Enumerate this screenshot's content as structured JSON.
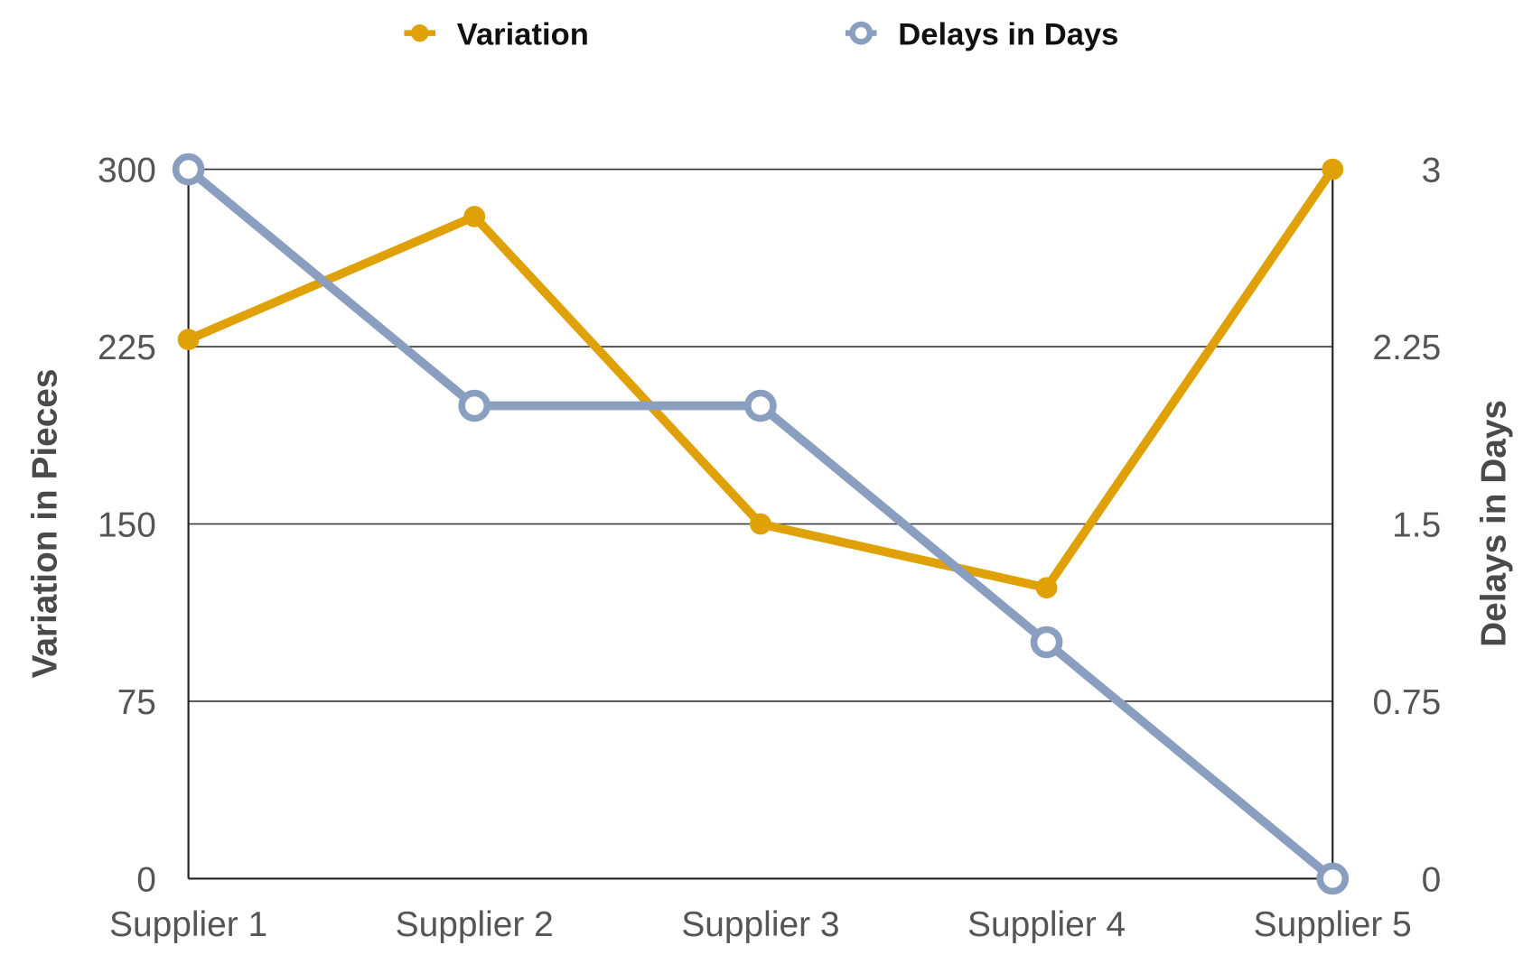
{
  "chart_data": {
    "type": "line",
    "categories": [
      "Supplier 1",
      "Supplier 2",
      "Supplier 3",
      "Supplier 4",
      "Supplier 5"
    ],
    "series": [
      {
        "name": "Variation",
        "axis": "left",
        "color": "#E0A106",
        "marker": "filled-circle",
        "values": [
          228,
          280,
          150,
          123,
          300
        ]
      },
      {
        "name": "Delays in Days",
        "axis": "right",
        "color": "#8A9FC0",
        "marker": "hollow-circle",
        "values": [
          3,
          2,
          2,
          1,
          0
        ]
      }
    ],
    "ylabel": "Variation in Pieces",
    "y2label": "Delays in Days",
    "ylim": [
      0,
      300
    ],
    "y2lim": [
      0,
      3
    ],
    "yticks": [
      "0",
      "75",
      "150",
      "225",
      "300"
    ],
    "y2ticks": [
      "0",
      "0.75",
      "1.5",
      "2.25",
      "3"
    ],
    "grid": true,
    "legend": "top-center"
  }
}
